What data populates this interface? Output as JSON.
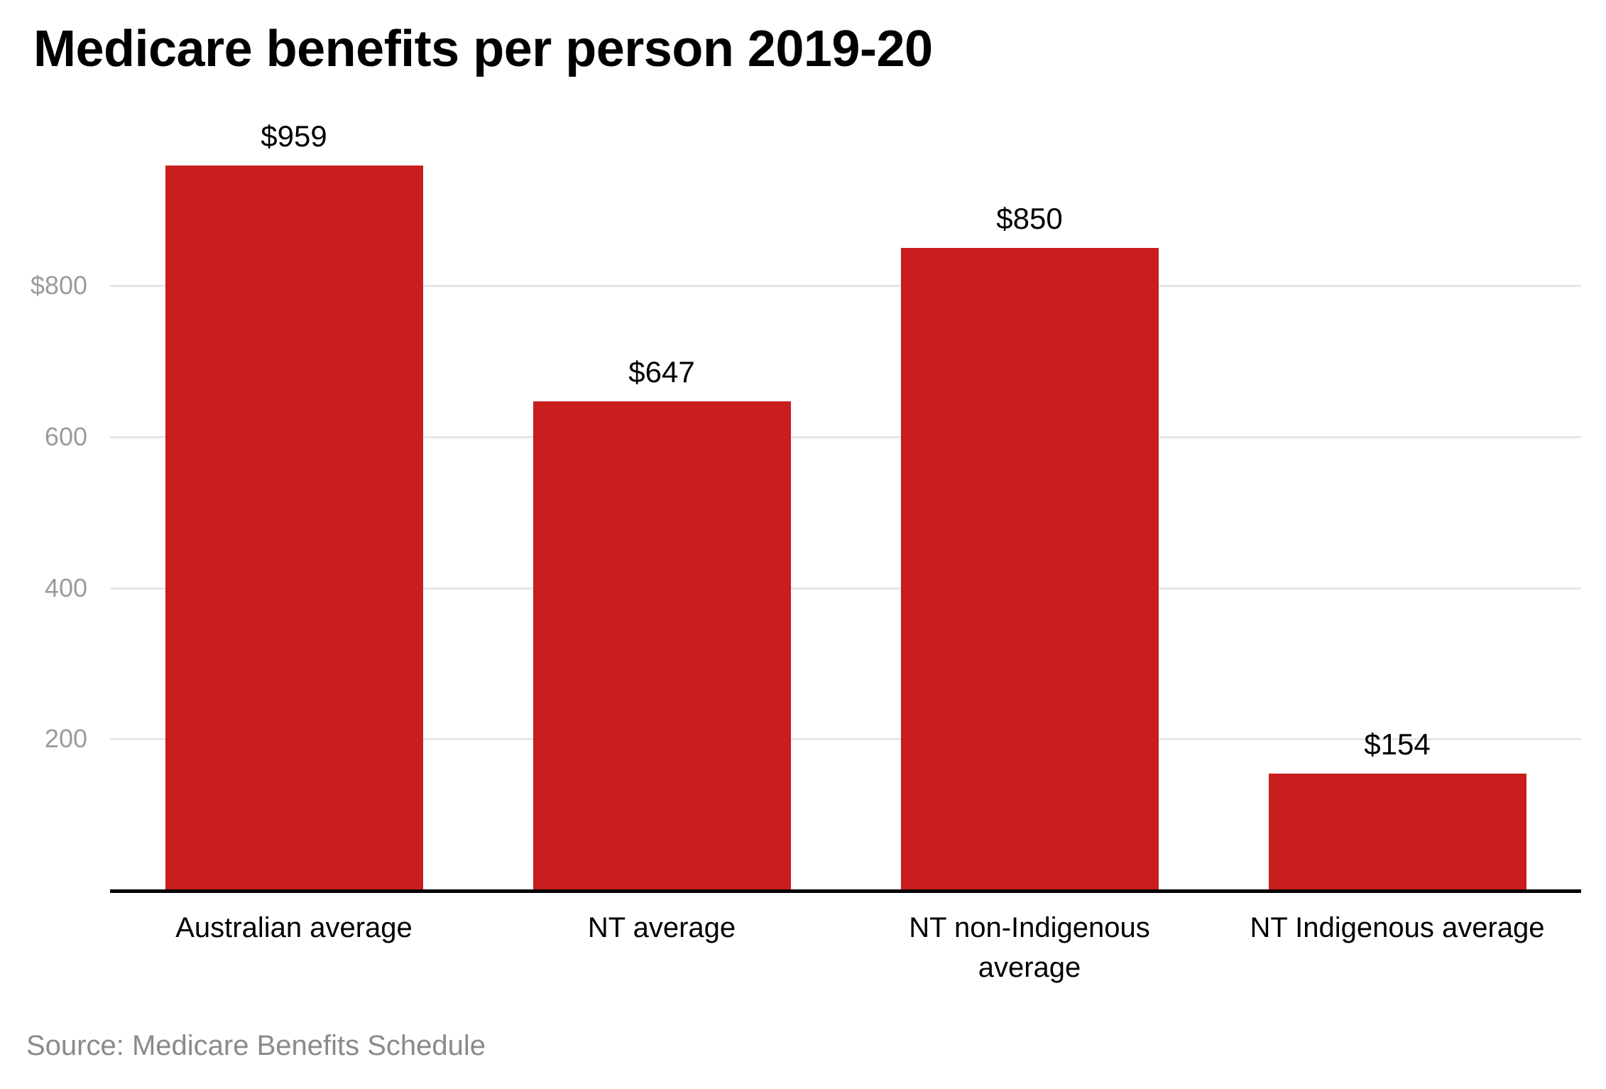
{
  "page": {
    "title": "Medicare benefits per person 2019-20",
    "source": "Source: Medicare Benefits Schedule"
  },
  "chart_data": {
    "type": "bar",
    "title": "Medicare benefits per person 2019-20",
    "categories": [
      "Australian average",
      "NT average",
      "NT non-Indigenous average",
      "NT Indigenous average"
    ],
    "values": [
      959,
      647,
      850,
      154
    ],
    "value_labels": [
      "$959",
      "$647",
      "$850",
      "$154"
    ],
    "yticks": [
      {
        "value": 800,
        "label": "$800"
      },
      {
        "value": 600,
        "label": "600"
      },
      {
        "value": 400,
        "label": "400"
      },
      {
        "value": 200,
        "label": "200"
      }
    ],
    "ylim": [
      0,
      959
    ],
    "grid": true,
    "legend": false,
    "bar_color": "#c91e1e",
    "text_color": "#000000",
    "tick_color": "#9b9b9b",
    "gridline_color": "#e6e6e6",
    "axis_color": "#000000",
    "source_color": "#8a8a8a",
    "xlabel": "",
    "ylabel": "",
    "source": "Source: Medicare Benefits Schedule"
  }
}
